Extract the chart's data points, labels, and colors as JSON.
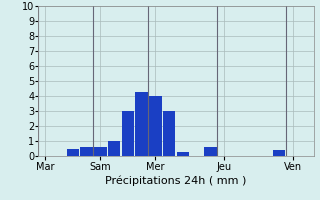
{
  "xlabel": "Précipitations 24h ( mm )",
  "background_color": "#d8eeee",
  "bar_color": "#1a3fc4",
  "ylim": [
    0,
    10
  ],
  "yticks": [
    0,
    1,
    2,
    3,
    4,
    5,
    6,
    7,
    8,
    9,
    10
  ],
  "day_labels": [
    "Mar",
    "Sam",
    "Mer",
    "Jeu",
    "Ven"
  ],
  "day_tick_positions": [
    0,
    4,
    8,
    13,
    18
  ],
  "n_bars": 20,
  "bar_values": [
    0,
    0,
    0.5,
    0.6,
    0.6,
    1.0,
    3.0,
    4.3,
    4.0,
    3.0,
    0.3,
    0,
    0.6,
    0,
    0,
    0,
    0,
    0.4,
    0,
    0
  ],
  "grid_color": "#aabbbb",
  "vline_color": "#666677",
  "xlabel_fontsize": 8,
  "tick_labelsize": 7
}
